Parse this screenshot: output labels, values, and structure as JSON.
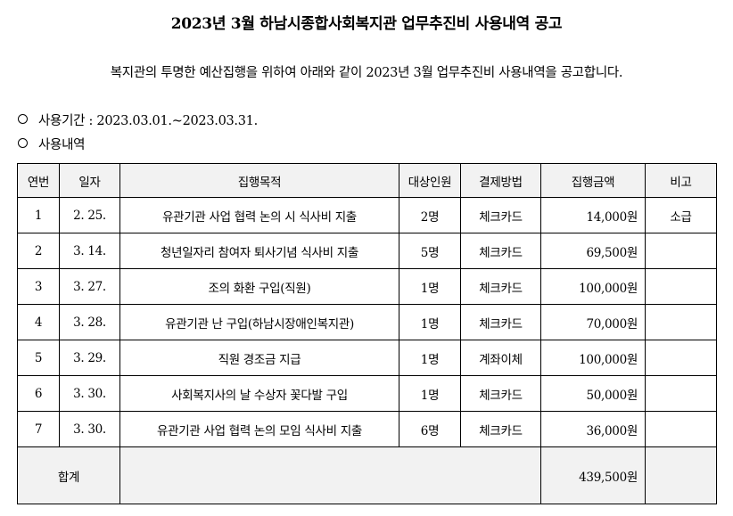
{
  "title": "2023년  3월  하남시종합사회복지관  업무추진비  사용내역  공고",
  "intro": "복지관의  투명한  예산집행을  위하여  아래와  같이  2023년  3월  업무추진비  사용내역을  공고합니다.",
  "period": {
    "label": "사용기간",
    "separator": ":",
    "value": "2023.03.01.~2023.03.31."
  },
  "details_label": "사용내역",
  "table": {
    "headers": [
      "연번",
      "일자",
      "집행목적",
      "대상인원",
      "결제방법",
      "집행금액",
      "비고"
    ],
    "rows": [
      {
        "no": "1",
        "date": "2. 25.",
        "purpose": "유관기관 사업 협력 논의 시 식사비 지출",
        "people": "2명",
        "method": "체크카드",
        "amount": "14,000원",
        "note": "소급"
      },
      {
        "no": "2",
        "date": "3. 14.",
        "purpose": "청년일자리 참여자 퇴사기념 식사비 지출",
        "people": "5명",
        "method": "체크카드",
        "amount": "69,500원",
        "note": ""
      },
      {
        "no": "3",
        "date": "3. 27.",
        "purpose": "조의 화환 구입(직원)",
        "people": "1명",
        "method": "체크카드",
        "amount": "100,000원",
        "note": ""
      },
      {
        "no": "4",
        "date": "3. 28.",
        "purpose": "유관기관 난 구입(하남시장애인복지관)",
        "people": "1명",
        "method": "체크카드",
        "amount": "70,000원",
        "note": ""
      },
      {
        "no": "5",
        "date": "3. 29.",
        "purpose": "직원 경조금 지급",
        "people": "1명",
        "method": "계좌이체",
        "amount": "100,000원",
        "note": ""
      },
      {
        "no": "6",
        "date": "3. 30.",
        "purpose": "사회복지사의 날 수상자 꽃다발 구입",
        "people": "1명",
        "method": "체크카드",
        "amount": "50,000원",
        "note": ""
      },
      {
        "no": "7",
        "date": "3. 30.",
        "purpose": "유관기관 사업 협력 논의 모임 식사비 지출",
        "people": "6명",
        "method": "체크카드",
        "amount": "36,000원",
        "note": ""
      }
    ],
    "total": {
      "label": "합계",
      "amount": "439,500원"
    }
  }
}
